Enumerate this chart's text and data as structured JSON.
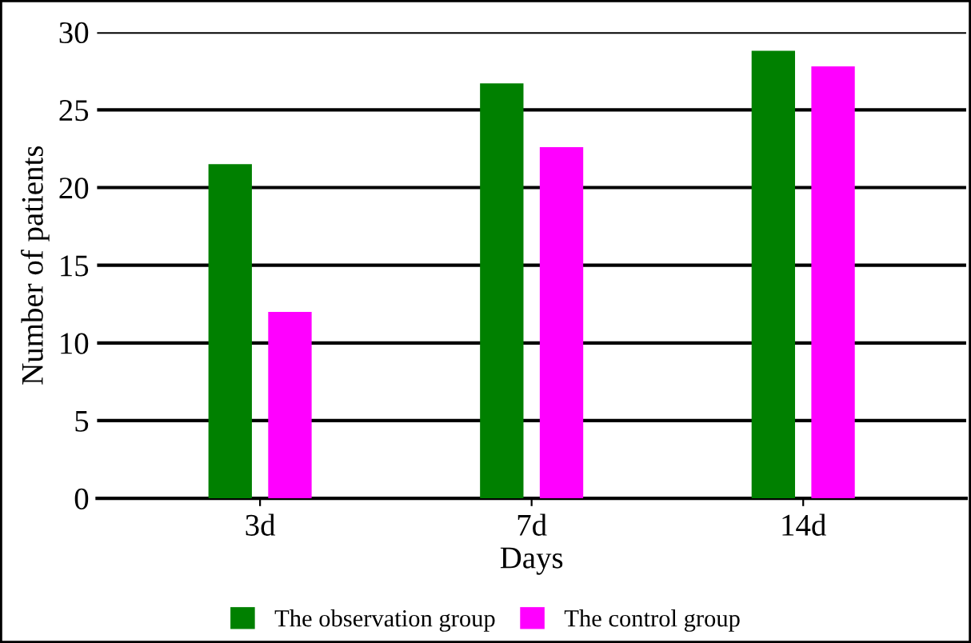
{
  "chart_data": {
    "type": "bar",
    "xlabel": "Days",
    "ylabel": "Number of patients",
    "categories": [
      "3d",
      "7d",
      "14d"
    ],
    "series": [
      {
        "name": "The observation group",
        "color": "#008000",
        "values": [
          21.5,
          26.7,
          28.8
        ]
      },
      {
        "name": "The control group",
        "color": "#ff00ff",
        "values": [
          12,
          22.6,
          27.8
        ]
      }
    ],
    "ylim": [
      0,
      30
    ],
    "yticks": [
      0,
      5,
      10,
      15,
      20,
      25,
      30
    ],
    "grid": "y",
    "legend": "bottom"
  }
}
